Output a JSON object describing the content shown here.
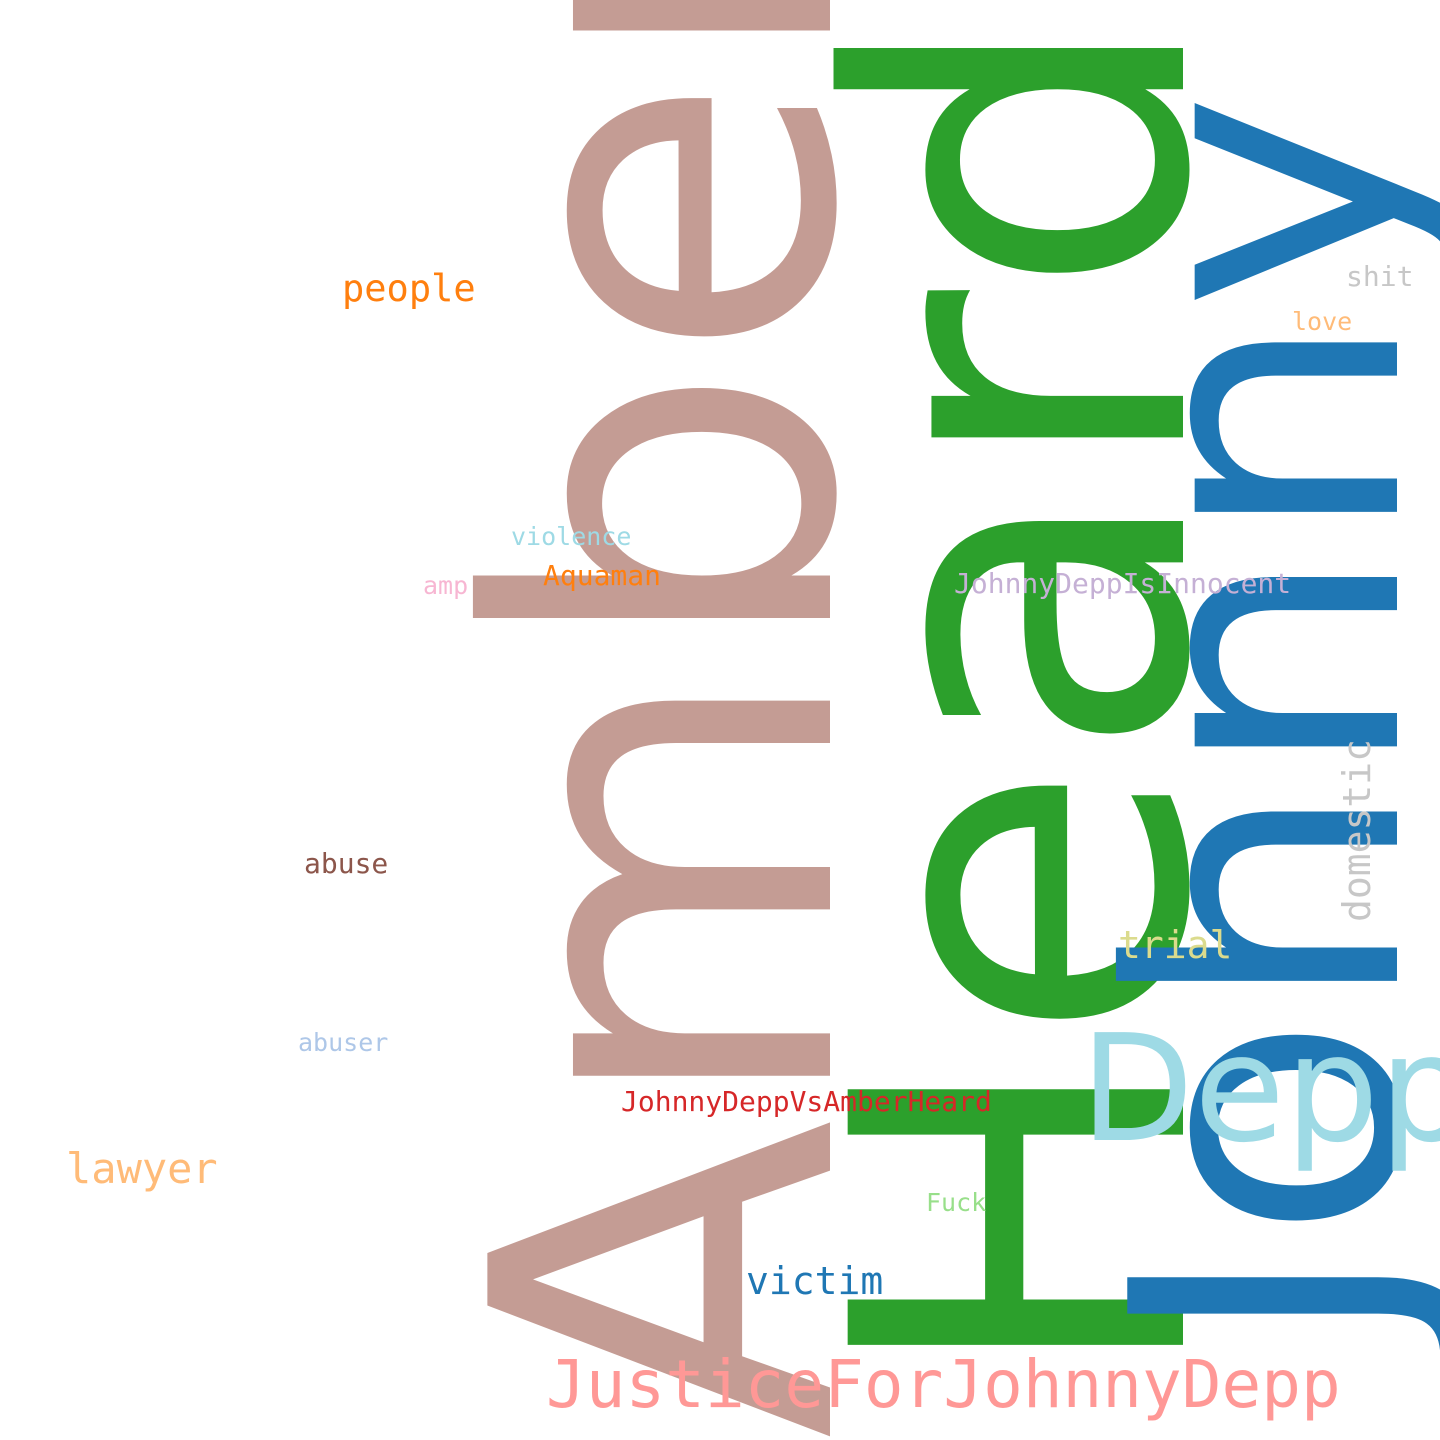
{
  "words": [
    {
      "id": "amber",
      "text": "Amber",
      "color": "#c49c94",
      "weight": 1.0
    },
    {
      "id": "heard",
      "text": "Heard",
      "color": "#2ca02c",
      "weight": 0.95
    },
    {
      "id": "johnny",
      "text": "Johnny",
      "color": "#1f77b4",
      "weight": 0.9
    },
    {
      "id": "depp",
      "text": "Depp",
      "color": "#9edae5",
      "weight": 0.3
    },
    {
      "id": "justicefor",
      "text": "JusticeForJohnnyDepp",
      "color": "#ff9896",
      "weight": 0.15
    },
    {
      "id": "domestic",
      "text": "domestic",
      "color": "#c7c7c7",
      "weight": 0.06
    },
    {
      "id": "people",
      "text": "people",
      "color": "#ff7f0e",
      "weight": 0.06
    },
    {
      "id": "lawyer",
      "text": "lawyer",
      "color": "#ffbb78",
      "weight": 0.06
    },
    {
      "id": "victim",
      "text": "victim",
      "color": "#1f77b4",
      "weight": 0.06
    },
    {
      "id": "trial",
      "text": "trial",
      "color": "#dbdb8d",
      "weight": 0.06
    },
    {
      "id": "jdvah",
      "text": "JohnnyDeppVsAmberHeard",
      "color": "#d62728",
      "weight": 0.05
    },
    {
      "id": "jdii",
      "text": "JohnnyDeppIsInnocent",
      "color": "#c5b0d5",
      "weight": 0.05
    },
    {
      "id": "aquaman",
      "text": "Aquaman",
      "color": "#ff7f0e",
      "weight": 0.05
    },
    {
      "id": "abuse",
      "text": "abuse",
      "color": "#8c564b",
      "weight": 0.05
    },
    {
      "id": "shit",
      "text": "shit",
      "color": "#c7c7c7",
      "weight": 0.05
    },
    {
      "id": "violence",
      "text": "violence",
      "color": "#9edae5",
      "weight": 0.04
    },
    {
      "id": "love",
      "text": "love",
      "color": "#ffbb78",
      "weight": 0.04
    },
    {
      "id": "amp",
      "text": "amp",
      "color": "#f7b6d2",
      "weight": 0.04
    },
    {
      "id": "abuser",
      "text": "abuser",
      "color": "#aec7e8",
      "weight": 0.04
    },
    {
      "id": "fuck",
      "text": "Fuck",
      "color": "#98df8a",
      "weight": 0.04
    }
  ]
}
